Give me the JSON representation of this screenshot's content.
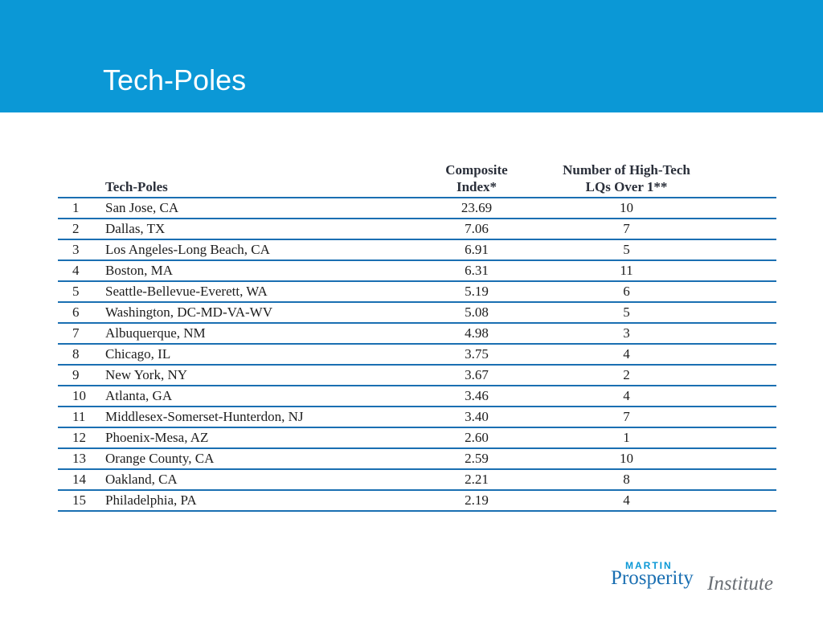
{
  "header": {
    "title": "Tech-Poles"
  },
  "table": {
    "columns": {
      "rank": "",
      "name": "Tech-Poles",
      "composite": [
        "Composite",
        "Index*"
      ],
      "lqs": [
        "Number of High-Tech",
        "LQs Over 1**"
      ]
    },
    "rows": [
      {
        "rank": "1",
        "name": "San Jose, CA",
        "composite": "23.69",
        "lqs": "10"
      },
      {
        "rank": "2",
        "name": "Dallas, TX",
        "composite": "7.06",
        "lqs": "7"
      },
      {
        "rank": "3",
        "name": "Los Angeles-Long Beach, CA",
        "composite": "6.91",
        "lqs": "5"
      },
      {
        "rank": "4",
        "name": "Boston, MA",
        "composite": "6.31",
        "lqs": "11"
      },
      {
        "rank": "5",
        "name": "Seattle-Bellevue-Everett, WA",
        "composite": "5.19",
        "lqs": "6"
      },
      {
        "rank": "6",
        "name": "Washington, DC-MD-VA-WV",
        "composite": "5.08",
        "lqs": "5"
      },
      {
        "rank": "7",
        "name": "Albuquerque, NM",
        "composite": "4.98",
        "lqs": "3"
      },
      {
        "rank": "8",
        "name": "Chicago, IL",
        "composite": "3.75",
        "lqs": "4"
      },
      {
        "rank": "9",
        "name": "New York, NY",
        "composite": "3.67",
        "lqs": "2"
      },
      {
        "rank": "10",
        "name": "Atlanta, GA",
        "composite": "3.46",
        "lqs": "4"
      },
      {
        "rank": "11",
        "name": "Middlesex-Somerset-Hunterdon, NJ",
        "composite": "3.40",
        "lqs": "7"
      },
      {
        "rank": "12",
        "name": "Phoenix-Mesa, AZ",
        "composite": "2.60",
        "lqs": "1"
      },
      {
        "rank": "13",
        "name": "Orange County, CA",
        "composite": "2.59",
        "lqs": "10"
      },
      {
        "rank": "14",
        "name": "Oakland, CA",
        "composite": "2.21",
        "lqs": "8"
      },
      {
        "rank": "15",
        "name": "Philadelphia, PA",
        "composite": "2.19",
        "lqs": "4"
      }
    ]
  },
  "logo": {
    "line1": "MARTIN",
    "line2": "Prosperity",
    "line3": "Institute"
  },
  "colors": {
    "banner": "#0b98d6",
    "rule": "#1a6fb2"
  }
}
